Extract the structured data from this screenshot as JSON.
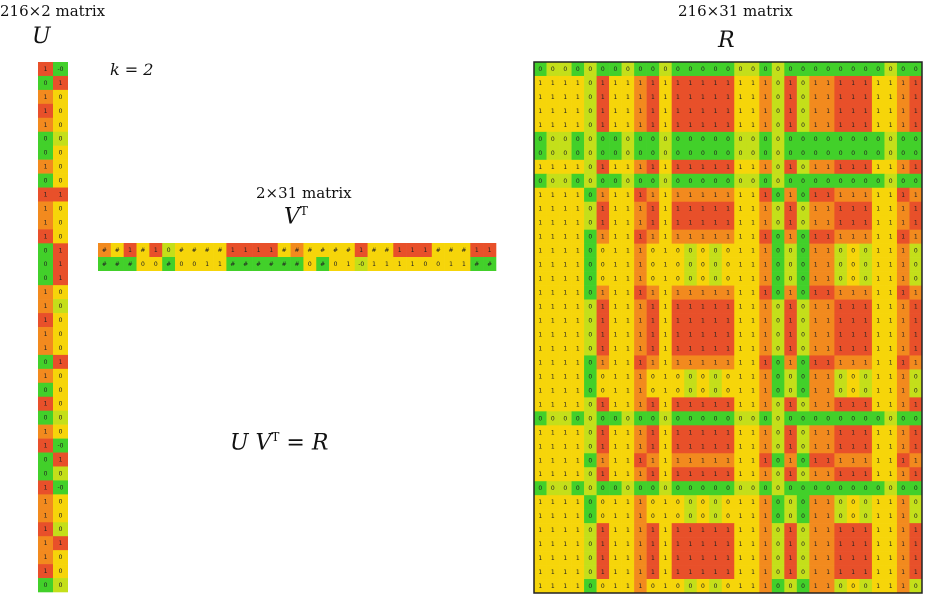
{
  "labels": {
    "u_dims": "216×2 matrix",
    "u_name": "U",
    "k_label": "k = 2",
    "vt_dims": "2×31 matrix",
    "vt_name": "V",
    "vt_sup": "T",
    "eq_u": "U V",
    "eq_sup": "T",
    "eq_rest": " = R",
    "r_dims": "216×31 matrix",
    "r_name": "R"
  },
  "colors": {
    "red": "#e8502a",
    "orange": "#f28a1e",
    "yellow": "#f6d50a",
    "yellowgreen": "#c4df1a",
    "green": "#42d02a",
    "border": "#222222"
  },
  "u_matrix": {
    "rows": [
      [
        "1",
        "-0"
      ],
      [
        "0",
        "1"
      ],
      [
        "1",
        "0"
      ],
      [
        "1",
        "0"
      ],
      [
        "1",
        "0"
      ],
      [
        "0",
        "0"
      ],
      [
        "0",
        "0"
      ],
      [
        "1",
        "0"
      ],
      [
        "0",
        "0"
      ],
      [
        "1",
        "1"
      ],
      [
        "1",
        "0"
      ],
      [
        "1",
        "0"
      ],
      [
        "1",
        "0"
      ],
      [
        "0",
        "1"
      ],
      [
        "0",
        "1"
      ],
      [
        "0",
        "1"
      ],
      [
        "1",
        "0"
      ],
      [
        "1",
        "0"
      ],
      [
        "1",
        "0"
      ],
      [
        "1",
        "0"
      ],
      [
        "1",
        "0"
      ],
      [
        "0",
        "1"
      ],
      [
        "1",
        "0"
      ],
      [
        "0",
        "0"
      ],
      [
        "1",
        "0"
      ],
      [
        "0",
        "0"
      ],
      [
        "1",
        "0"
      ],
      [
        "1",
        "-0"
      ],
      [
        "0",
        "1"
      ],
      [
        "0",
        "0"
      ],
      [
        "1",
        "-0"
      ],
      [
        "1",
        "0"
      ],
      [
        "1",
        "0"
      ],
      [
        "1",
        "0"
      ],
      [
        "1",
        "1"
      ],
      [
        "1",
        "0"
      ],
      [
        "1",
        "0"
      ],
      [
        "0",
        "0"
      ]
    ],
    "col_colors": [
      "#e8502a",
      "#42d02a"
    ]
  },
  "vt_matrix": {
    "rows": [
      [
        "#",
        "#",
        "1",
        "#",
        "1",
        "0",
        "#",
        "#",
        "#",
        "#",
        "1",
        "1",
        "1",
        "1",
        "#",
        "#",
        "#",
        "#",
        "#",
        "#",
        "1",
        "#",
        "#",
        "1",
        "1",
        "1",
        "#",
        "#",
        "#",
        "1",
        "1"
      ],
      [
        "#",
        "#",
        "#",
        "0",
        "0",
        "#",
        "0",
        "0",
        "1",
        "1",
        "#",
        "#",
        "#",
        "#",
        "#",
        "#",
        "0",
        "#",
        "0",
        "1",
        "-0",
        "1",
        "1",
        "1",
        "1",
        "0",
        "0",
        "1",
        "1",
        "#",
        "#"
      ]
    ]
  },
  "r_matrix": {
    "n_rows": 38,
    "n_cols": 31,
    "row_types": [
      "z",
      "a",
      "a",
      "a",
      "a",
      "z",
      "z",
      "a",
      "z",
      "b",
      "a",
      "a",
      "b",
      "c",
      "c",
      "c",
      "b",
      "a",
      "a",
      "a",
      "a",
      "b",
      "c",
      "c",
      "a",
      "z",
      "a",
      "a",
      "b",
      "a",
      "z",
      "c",
      "c",
      "a",
      "a",
      "a",
      "a",
      "c"
    ],
    "col_pattern": [
      "y",
      "y",
      "y",
      "y",
      "g",
      "r",
      "y",
      "y",
      "o",
      "r",
      "y",
      "r",
      "r",
      "r",
      "r",
      "r",
      "y",
      "y",
      "o",
      "g",
      "r",
      "g",
      "o",
      "o",
      "r",
      "r",
      "r",
      "y",
      "y",
      "o",
      "r"
    ]
  }
}
